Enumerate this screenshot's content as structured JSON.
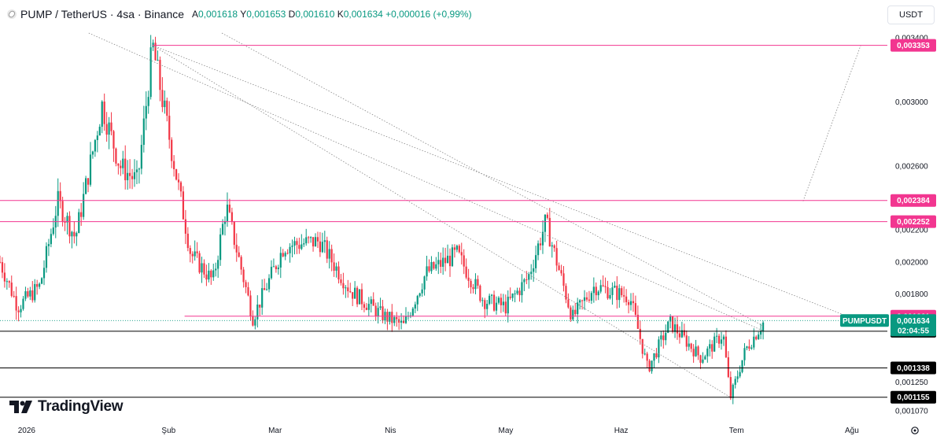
{
  "header": {
    "symbol_title": "PUMP / TetherUS · 4sa · Binance",
    "ohlc": [
      {
        "key": "A",
        "value": "0,001618"
      },
      {
        "key": "Y",
        "value": "0,001653"
      },
      {
        "key": "D",
        "value": "0,001610"
      },
      {
        "key": "K",
        "value": "0,001634"
      }
    ],
    "change": "+0,000016 (+0,99%)",
    "currency_button": "USDT"
  },
  "branding": {
    "logo_text": "TradingView",
    "logo_icon": "tradingview-logo-icon"
  },
  "colors": {
    "up": "#089981",
    "down": "#f23645",
    "resistance": "#f23690",
    "support": "#000000",
    "last_price": "#089981",
    "trend": "#888888"
  },
  "chart_data": {
    "type": "candlestick",
    "symbol": "PUMPUSDT",
    "interval": "4sa",
    "exchange": "Binance",
    "ylim": [
      0.00107,
      0.00343
    ],
    "x_tick_labels": [
      {
        "label": "2026",
        "t": 0.03
      },
      {
        "label": "Şub",
        "t": 0.19
      },
      {
        "label": "Mar",
        "t": 0.31
      },
      {
        "label": "Nis",
        "t": 0.44
      },
      {
        "label": "May",
        "t": 0.57
      },
      {
        "label": "Haz",
        "t": 0.7
      },
      {
        "label": "Tem",
        "t": 0.83
      },
      {
        "label": "Ağu",
        "t": 0.96
      }
    ],
    "y_tick_labels": [
      {
        "label": "0,003400",
        "value": 0.0034
      },
      {
        "label": "0,003000",
        "value": 0.003
      },
      {
        "label": "0,002600",
        "value": 0.0026
      },
      {
        "label": "0,002200",
        "value": 0.0022
      },
      {
        "label": "0,002000",
        "value": 0.002
      },
      {
        "label": "0,001800",
        "value": 0.0018
      },
      {
        "label": "0,001250",
        "value": 0.00125
      },
      {
        "label": "0,001070",
        "value": 0.00107
      }
    ],
    "price_levels": [
      {
        "label": "0,003353",
        "value": 0.003353,
        "kind": "resistance"
      },
      {
        "label": "0,002384",
        "value": 0.002384,
        "kind": "resistance"
      },
      {
        "label": "0,002252",
        "value": 0.002252,
        "kind": "resistance"
      },
      {
        "label": "0,001661",
        "value": 0.001661,
        "kind": "resistance"
      },
      {
        "label": "0,001567",
        "value": 0.001567,
        "kind": "support"
      },
      {
        "label": "0,001338",
        "value": 0.001338,
        "kind": "support"
      },
      {
        "label": "0,001155",
        "value": 0.001155,
        "kind": "support"
      }
    ],
    "last_price": {
      "symbol_label": "PUMPUSDT",
      "label": "0,001634",
      "value": 0.001634,
      "countdown": "02:04:55"
    },
    "close_path": [
      {
        "t": 0.0,
        "v": 0.002
      },
      {
        "t": 0.02,
        "v": 0.00172
      },
      {
        "t": 0.045,
        "v": 0.00185
      },
      {
        "t": 0.065,
        "v": 0.00238
      },
      {
        "t": 0.085,
        "v": 0.00215
      },
      {
        "t": 0.115,
        "v": 0.00298
      },
      {
        "t": 0.135,
        "v": 0.0026
      },
      {
        "t": 0.155,
        "v": 0.0025
      },
      {
        "t": 0.172,
        "v": 0.00335
      },
      {
        "t": 0.195,
        "v": 0.00265
      },
      {
        "t": 0.215,
        "v": 0.00205
      },
      {
        "t": 0.24,
        "v": 0.00188
      },
      {
        "t": 0.255,
        "v": 0.00235
      },
      {
        "t": 0.285,
        "v": 0.00165
      },
      {
        "t": 0.32,
        "v": 0.0021
      },
      {
        "t": 0.36,
        "v": 0.00213
      },
      {
        "t": 0.395,
        "v": 0.00182
      },
      {
        "t": 0.43,
        "v": 0.00167
      },
      {
        "t": 0.455,
        "v": 0.0016
      },
      {
        "t": 0.48,
        "v": 0.00193
      },
      {
        "t": 0.515,
        "v": 0.00205
      },
      {
        "t": 0.545,
        "v": 0.00176
      },
      {
        "t": 0.57,
        "v": 0.00172
      },
      {
        "t": 0.595,
        "v": 0.0019
      },
      {
        "t": 0.615,
        "v": 0.00225
      },
      {
        "t": 0.645,
        "v": 0.00165
      },
      {
        "t": 0.67,
        "v": 0.00185
      },
      {
        "t": 0.71,
        "v": 0.00178
      },
      {
        "t": 0.73,
        "v": 0.00133
      },
      {
        "t": 0.755,
        "v": 0.00162
      },
      {
        "t": 0.79,
        "v": 0.0014
      },
      {
        "t": 0.815,
        "v": 0.00155
      },
      {
        "t": 0.823,
        "v": 0.00115
      },
      {
        "t": 0.84,
        "v": 0.00145
      },
      {
        "t": 0.86,
        "v": 0.00162
      }
    ]
  }
}
